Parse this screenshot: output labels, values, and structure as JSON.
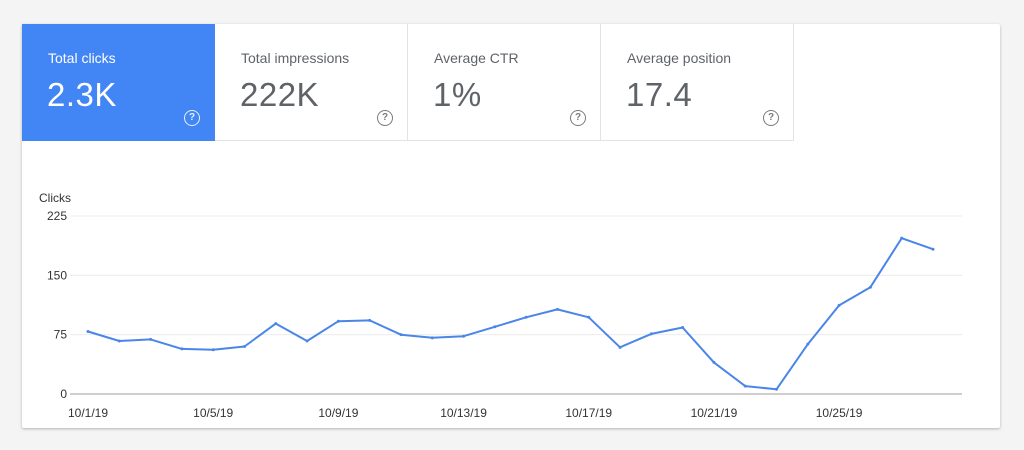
{
  "metrics": [
    {
      "label": "Total clicks",
      "value": "2.3K",
      "active": true,
      "help": "?"
    },
    {
      "label": "Total impressions",
      "value": "222K",
      "active": false,
      "help": "?"
    },
    {
      "label": "Average CTR",
      "value": "1%",
      "active": false,
      "help": "?"
    },
    {
      "label": "Average position",
      "value": "17.4",
      "active": false,
      "help": "?"
    }
  ],
  "colors": {
    "accent": "#4285f4",
    "line": "#4a86e8",
    "grid": "#ececec",
    "axis": "#9e9e9e"
  },
  "chart_data": {
    "type": "line",
    "ylabel": "Clicks",
    "ylim": [
      0,
      225
    ],
    "yticks": [
      0,
      75,
      150,
      225
    ],
    "x": [
      "10/1/19",
      "10/2/19",
      "10/3/19",
      "10/4/19",
      "10/5/19",
      "10/6/19",
      "10/7/19",
      "10/8/19",
      "10/9/19",
      "10/10/19",
      "10/11/19",
      "10/12/19",
      "10/13/19",
      "10/14/19",
      "10/15/19",
      "10/16/19",
      "10/17/19",
      "10/18/19",
      "10/19/19",
      "10/20/19",
      "10/21/19",
      "10/22/19",
      "10/23/19",
      "10/24/19",
      "10/25/19",
      "10/26/19",
      "10/27/19",
      "10/28/19"
    ],
    "xtick_labels": [
      "10/1/19",
      "10/5/19",
      "10/9/19",
      "10/13/19",
      "10/17/19",
      "10/21/19",
      "10/25/19"
    ],
    "series": [
      {
        "values": [
          79,
          67,
          69,
          57,
          56,
          60,
          89,
          67,
          92,
          93,
          75,
          71,
          73,
          85,
          97,
          107,
          97,
          59,
          76,
          84,
          40,
          10,
          6,
          63,
          112,
          135,
          197,
          183
        ]
      }
    ],
    "grid": true
  }
}
